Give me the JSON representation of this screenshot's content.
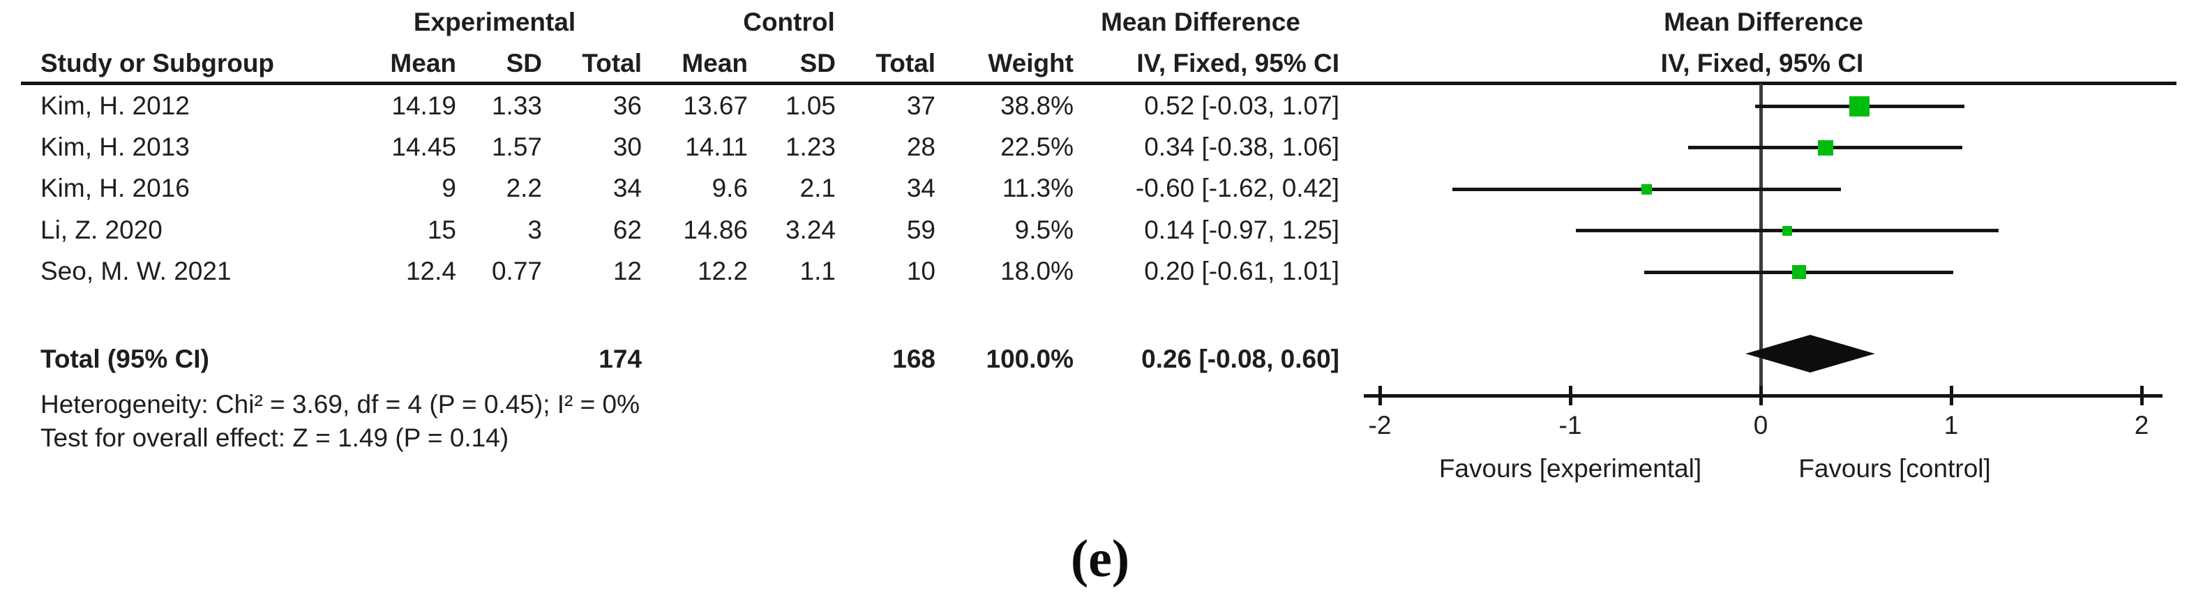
{
  "caption": "(e)",
  "colors": {
    "marker_green": "#00BC0C",
    "ci_line": "#141414",
    "zero_line": "#3d3d3d",
    "axis": "#161314",
    "diamond": "#0d0d0d",
    "ink": "#201d1e"
  },
  "header": {
    "groups": {
      "experimental": "Experimental",
      "control": "Control",
      "md_table": "Mean Difference",
      "md_plot": "Mean Difference"
    },
    "columns": {
      "study": "Study or Subgroup",
      "mean1": "Mean",
      "sd1": "SD",
      "total1": "Total",
      "mean2": "Mean",
      "sd2": "SD",
      "total2": "Total",
      "weight": "Weight",
      "ci": "IV, Fixed, 95% CI",
      "ci_plot": "IV, Fixed, 95% CI"
    }
  },
  "chart_data": {
    "type": "forest",
    "effect_measure": "Mean Difference",
    "method": "IV, Fixed, 95% CI",
    "studies": [
      {
        "label": "Kim, H. 2012",
        "exp_mean": "14.19",
        "exp_sd": "1.33",
        "exp_total": "36",
        "ctl_mean": "13.67",
        "ctl_sd": "1.05",
        "ctl_total": "37",
        "weight": "38.8%",
        "weight_pct": 38.8,
        "md": 0.52,
        "ci_low": -0.03,
        "ci_high": 1.07,
        "ci_text": "0.52 [-0.03, 1.07]"
      },
      {
        "label": "Kim, H. 2013",
        "exp_mean": "14.45",
        "exp_sd": "1.57",
        "exp_total": "30",
        "ctl_mean": "14.11",
        "ctl_sd": "1.23",
        "ctl_total": "28",
        "weight": "22.5%",
        "weight_pct": 22.5,
        "md": 0.34,
        "ci_low": -0.38,
        "ci_high": 1.06,
        "ci_text": "0.34 [-0.38, 1.06]"
      },
      {
        "label": "Kim, H. 2016",
        "exp_mean": "9",
        "exp_sd": "2.2",
        "exp_total": "34",
        "ctl_mean": "9.6",
        "ctl_sd": "2.1",
        "ctl_total": "34",
        "weight": "11.3%",
        "weight_pct": 11.3,
        "md": -0.6,
        "ci_low": -1.62,
        "ci_high": 0.42,
        "ci_text": "-0.60 [-1.62, 0.42]"
      },
      {
        "label": "Li, Z. 2020",
        "exp_mean": "15",
        "exp_sd": "3",
        "exp_total": "62",
        "ctl_mean": "14.86",
        "ctl_sd": "3.24",
        "ctl_total": "59",
        "weight": "9.5%",
        "weight_pct": 9.5,
        "md": 0.14,
        "ci_low": -0.97,
        "ci_high": 1.25,
        "ci_text": "0.14 [-0.97, 1.25]"
      },
      {
        "label": "Seo, M. W. 2021",
        "exp_mean": "12.4",
        "exp_sd": "0.77",
        "exp_total": "12",
        "ctl_mean": "12.2",
        "ctl_sd": "1.1",
        "ctl_total": "10",
        "weight": "18.0%",
        "weight_pct": 18.0,
        "md": 0.2,
        "ci_low": -0.61,
        "ci_high": 1.01,
        "ci_text": "0.20 [-0.61, 1.01]"
      }
    ],
    "total": {
      "label": "Total (95% CI)",
      "exp_total": "174",
      "ctl_total": "168",
      "weight": "100.0%",
      "md": 0.26,
      "ci_low": -0.08,
      "ci_high": 0.6,
      "ci_text": "0.26 [-0.08, 0.60]"
    },
    "heterogeneity": "Heterogeneity: Chi² = 3.69, df = 4 (P = 0.45); I² = 0%",
    "overall_effect": "Test for overall effect: Z = 1.49 (P = 0.14)",
    "axis": {
      "min": -2,
      "max": 2,
      "ticks": [
        "-2",
        "-1",
        "0",
        "1",
        "2"
      ],
      "favours_left": "Favours [experimental]",
      "favours_right": "Favours [control]"
    }
  }
}
